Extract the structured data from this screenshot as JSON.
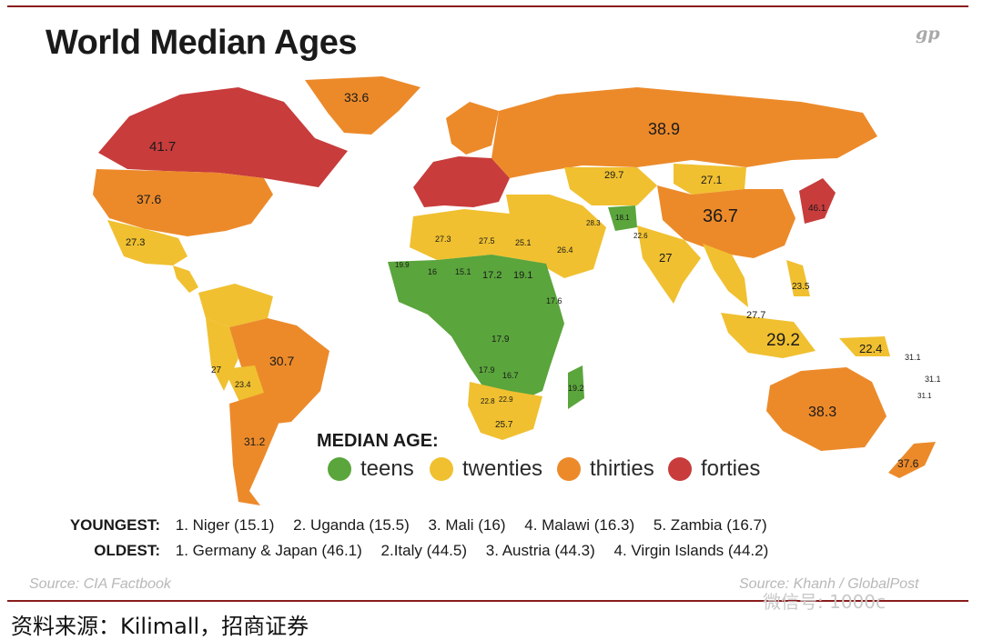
{
  "title": "World Median Ages",
  "logo": "gp",
  "colors": {
    "teens": "#5aa53c",
    "twenties": "#f0c030",
    "thirties": "#ec8a2a",
    "forties": "#c83c3c",
    "rule": "#8a1c1c"
  },
  "legend": {
    "title": "MEDIAN AGE:",
    "items": [
      {
        "label": "teens",
        "color": "#5aa53c"
      },
      {
        "label": "twenties",
        "color": "#f0c030"
      },
      {
        "label": "thirties",
        "color": "#ec8a2a"
      },
      {
        "label": "forties",
        "color": "#c83c3c"
      }
    ]
  },
  "region_labels": [
    {
      "name": "canada",
      "value": "41.7"
    },
    {
      "name": "greenland",
      "value": "33.6"
    },
    {
      "name": "usa",
      "value": "37.6"
    },
    {
      "name": "mexico",
      "value": "27.3"
    },
    {
      "name": "brazil",
      "value": "30.7"
    },
    {
      "name": "argentina",
      "value": "31.2"
    },
    {
      "name": "bolivia",
      "value": "23.4"
    },
    {
      "name": "peru",
      "value": "27"
    },
    {
      "name": "russia",
      "value": "38.9"
    },
    {
      "name": "kazakhstan",
      "value": "29.7"
    },
    {
      "name": "mongolia",
      "value": "27.1"
    },
    {
      "name": "china",
      "value": "36.7"
    },
    {
      "name": "india",
      "value": "27"
    },
    {
      "name": "indonesia",
      "value": "29.2"
    },
    {
      "name": "png",
      "value": "22.4"
    },
    {
      "name": "australia",
      "value": "38.3"
    },
    {
      "name": "new-zealand",
      "value": "37.6"
    },
    {
      "name": "algeria",
      "value": "27.3"
    },
    {
      "name": "libya",
      "value": "27.5"
    },
    {
      "name": "egypt",
      "value": "25.1"
    },
    {
      "name": "saudi",
      "value": "26.4"
    },
    {
      "name": "sudan",
      "value": "19.1"
    },
    {
      "name": "chad",
      "value": "17.2"
    },
    {
      "name": "niger",
      "value": "15.1"
    },
    {
      "name": "mali",
      "value": "16"
    },
    {
      "name": "mauritania",
      "value": "19.9"
    },
    {
      "name": "ethiopia",
      "value": "17.6"
    },
    {
      "name": "congo",
      "value": "17.9"
    },
    {
      "name": "angola",
      "value": "17.9"
    },
    {
      "name": "zambia",
      "value": "16.7"
    },
    {
      "name": "south-africa",
      "value": "25.7"
    },
    {
      "name": "namibia",
      "value": "22.8"
    },
    {
      "name": "botswana",
      "value": "22.9"
    },
    {
      "name": "madagascar",
      "value": "19.2"
    },
    {
      "name": "afghanistan",
      "value": "18.1"
    },
    {
      "name": "pakistan",
      "value": "22.6"
    },
    {
      "name": "iran",
      "value": "28.3"
    },
    {
      "name": "philippines",
      "value": "23.5"
    },
    {
      "name": "malaysia",
      "value": "27.7"
    },
    {
      "name": "japan",
      "value": "46.1"
    },
    {
      "name": "pacific-1",
      "value": "31.1"
    },
    {
      "name": "pacific-2",
      "value": "31.1"
    },
    {
      "name": "pacific-3",
      "value": "31.1"
    }
  ],
  "youngest": {
    "heading": "YOUNGEST:",
    "entries": [
      "1. Niger (15.1)",
      "2. Uganda (15.5)",
      "3. Mali (16)",
      "4. Malawi (16.3)",
      "5. Zambia (16.7)"
    ]
  },
  "oldest": {
    "heading": "OLDEST:",
    "entries": [
      "1. Germany & Japan (46.1)",
      "2.Italy (44.5)",
      "3. Austria (44.3)",
      "4. Virgin Islands (44.2)"
    ]
  },
  "source": "Source: CIA Factbook",
  "credit": "Source: Khanh / GlobalPost",
  "footer": "资料来源：Kilimall，招商证券",
  "watermark": "微信号: 1000c"
}
